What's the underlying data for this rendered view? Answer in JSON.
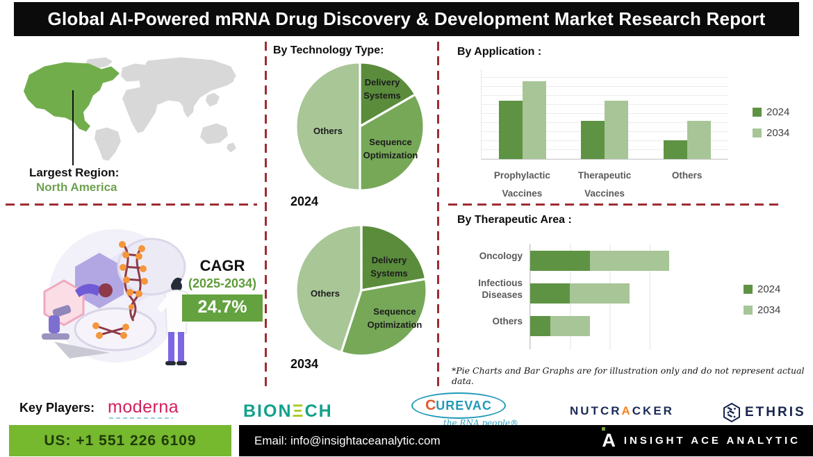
{
  "title": "Global AI-Powered mRNA Drug Discovery & Development Market Research Report",
  "region": {
    "label": "Largest Region:",
    "value": "North America"
  },
  "cagr": {
    "label": "CAGR",
    "period": "(2025-2034)",
    "value": "24.7%"
  },
  "chart_data": [
    {
      "type": "pie",
      "title": "By Technology Type:",
      "year_label": "2024",
      "slices": [
        {
          "label": "Delivery Systems",
          "degrees": 60,
          "pct": 16.7,
          "color": "#5a8c3c"
        },
        {
          "label": "Sequence Optimization",
          "degrees": 120,
          "pct": 33.3,
          "color": "#76a858"
        },
        {
          "label": "Others",
          "degrees": 180,
          "pct": 50.0,
          "color": "#a8c696"
        }
      ]
    },
    {
      "type": "pie",
      "title": "By Technology Type:",
      "year_label": "2034",
      "slices": [
        {
          "label": "Delivery Systems",
          "degrees": 80,
          "pct": 22.2,
          "color": "#5a8c3c"
        },
        {
          "label": "Sequence Optimization",
          "degrees": 118,
          "pct": 32.8,
          "color": "#76a858"
        },
        {
          "label": "Others",
          "degrees": 162,
          "pct": 45.0,
          "color": "#a8c696"
        }
      ]
    },
    {
      "type": "bar",
      "title": "By Application :",
      "categories": [
        "Prophylactic Vaccines",
        "Therapeutic Vaccines",
        "Others"
      ],
      "series": [
        {
          "name": "2024",
          "color": "#5e9344",
          "values": [
            65,
            43,
            21
          ]
        },
        {
          "name": "2034",
          "color": "#a7c596",
          "values": [
            87,
            65,
            43
          ]
        }
      ],
      "ylim": [
        0,
        100
      ],
      "grid": "horizontal",
      "legend_position": "right"
    },
    {
      "type": "bar-horizontal-stacked",
      "title": "By Therapeutic Area :",
      "categories": [
        "Oncology",
        "Infectious Diseases",
        "Others"
      ],
      "series": [
        {
          "name": "2024",
          "color": "#5e9344",
          "values": [
            37.5,
            25,
            12.5
          ]
        },
        {
          "name": "2034",
          "color": "#a7c596",
          "values": [
            50,
            37.5,
            25
          ]
        }
      ],
      "xlim": [
        0,
        100
      ],
      "grid": "vertical",
      "legend_position": "right"
    }
  ],
  "footnote": "*Pie Charts and Bar Graphs are for illustration only and do not represent actual data.",
  "key_players": {
    "label": "Key Players:",
    "moderna": "moderna",
    "biontech_parts": [
      "BION",
      "Ξ",
      "CH"
    ],
    "biontech_name": "BIONTECH",
    "curevac_c": "C",
    "curevac_rest": "UREVAC",
    "curevac_tagline": "the RNA people®",
    "nutcracker_parts": [
      "NUTCR",
      "A",
      "CKER"
    ],
    "nutcracker_name": "NUTCRACKER",
    "ethris": "ETHRIS"
  },
  "footer": {
    "phone": "US: +1 551 226 6109",
    "email": "Email: info@insightaceanalytic.com",
    "brand_glyph": "A",
    "brand": "INSIGHT ACE ANALYTIC"
  },
  "colors": {
    "divider_red": "#9e2b33",
    "map_green": "#72ad4c",
    "map_gray": "#d8d8d8",
    "pie_delivery": "#5a8c3c",
    "pie_sequence": "#76a858",
    "pie_others": "#a8c696",
    "bar_2024": "#5e9344",
    "bar_2034": "#a7c596",
    "cagr_text_green": "#5e9c3a",
    "cagr_box_green": "#63a23f",
    "footer_green": "#76b82e",
    "title_bar_black": "#0b0b0b",
    "region_value_green": "#6da14f"
  }
}
